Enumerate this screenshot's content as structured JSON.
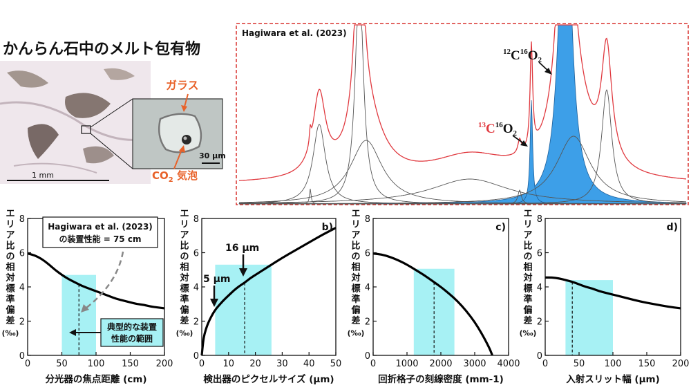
{
  "figure": {
    "title": "かんらん石中のメルト包有物",
    "scale_bar_main": "1 mm",
    "scale_bar_inset": "30 μm",
    "label_glass": "ガラス",
    "label_bubble_prefix": "CO",
    "label_bubble_sub": "2",
    "label_bubble_suffix": " 気泡"
  },
  "colors": {
    "accent_orange": "#e8622a",
    "red_curve": "#e0393f",
    "fill_blue": "#3d9fe8",
    "shade_cyan": "#a7f1f4",
    "border_red": "#d9322f"
  },
  "spectrum": {
    "title": "Hagiwara et al. (2023)",
    "label_12_mass1": "12",
    "label_12_elem1": "C",
    "label_12_mass2": "16",
    "label_12_elem2": "O",
    "label_12_sub": "2",
    "label_13_mass1": "13",
    "label_13_elem1": "C",
    "label_13_mass2": "16",
    "label_13_elem2": "O",
    "label_13_sub": "2"
  },
  "annotation": {
    "hagiwara_line1": "Hagiwara et al. (2023)",
    "hagiwara_line2": "の装置性能 = 75 cm",
    "typical_line1": "典型的な装置",
    "typical_line2": "性能の範囲",
    "pixel_5": "5 μm",
    "pixel_16": "16 μm"
  },
  "chart_data": [
    {
      "id": "a",
      "type": "line",
      "panel_label": "",
      "xlabel": "分光器の焦点距離 (cm)",
      "ylabel": "エリア比の相対標準偏差",
      "yunit": "(‰)",
      "xlim": [
        0,
        200
      ],
      "ylim": [
        0,
        8
      ],
      "xticks": [
        0,
        50,
        100,
        150,
        200
      ],
      "yticks": [
        0,
        2,
        4,
        6,
        8
      ],
      "x": [
        0,
        10,
        20,
        30,
        40,
        50,
        60,
        70,
        80,
        90,
        100,
        110,
        120,
        130,
        140,
        150,
        160,
        170,
        180,
        190,
        200
      ],
      "y": [
        5.95,
        5.85,
        5.65,
        5.35,
        5.0,
        4.7,
        4.45,
        4.25,
        4.05,
        3.9,
        3.75,
        3.6,
        3.45,
        3.3,
        3.2,
        3.1,
        3.0,
        2.95,
        2.85,
        2.8,
        2.75
      ],
      "shade": [
        50,
        100
      ],
      "marker": 75
    },
    {
      "id": "b",
      "type": "line",
      "panel_label": "b)",
      "xlabel": "検出器のピクセルサイズ (μm)",
      "ylabel": "エリア比の相対標準偏差",
      "yunit": "(‰)",
      "xlim": [
        0,
        50
      ],
      "ylim": [
        0,
        8
      ],
      "xticks": [
        0,
        10,
        20,
        30,
        40,
        50
      ],
      "yticks": [
        0,
        2,
        4,
        6,
        8
      ],
      "x": [
        0,
        0.5,
        1,
        2,
        3,
        4,
        5,
        6,
        8,
        10,
        12,
        14,
        16,
        18,
        20,
        22,
        25,
        30,
        35,
        40,
        45,
        50
      ],
      "y": [
        0,
        0.8,
        1.25,
        1.75,
        2.1,
        2.4,
        2.65,
        2.85,
        3.2,
        3.5,
        3.8,
        4.05,
        4.25,
        4.5,
        4.7,
        4.9,
        5.2,
        5.7,
        6.15,
        6.6,
        7.05,
        7.45
      ],
      "shade": [
        5,
        26
      ],
      "marker": 16
    },
    {
      "id": "c",
      "type": "line",
      "panel_label": "c)",
      "xlabel": "回折格子の刻線密度 (mm-1)",
      "ylabel": "エリア比の相対標準偏差",
      "yunit": "(‰)",
      "xlim": [
        0,
        4000
      ],
      "ylim": [
        0,
        8
      ],
      "xticks": [
        0,
        1000,
        2000,
        3000,
        4000
      ],
      "yticks": [
        0,
        2,
        4,
        6,
        8
      ],
      "x": [
        0,
        250,
        500,
        750,
        1000,
        1250,
        1500,
        1750,
        2000,
        2250,
        2500,
        2750,
        3000,
        3200,
        3350,
        3450,
        3500,
        3520
      ],
      "y": [
        5.95,
        5.9,
        5.75,
        5.55,
        5.3,
        5.0,
        4.7,
        4.35,
        4.0,
        3.6,
        3.15,
        2.6,
        1.95,
        1.3,
        0.75,
        0.35,
        0.1,
        0
      ],
      "shade": [
        1200,
        2400
      ],
      "marker": 1800
    },
    {
      "id": "d",
      "type": "line",
      "panel_label": "d)",
      "xlabel": "入射スリット幅 (μm)",
      "ylabel": "エリア比の相対標準偏差",
      "yunit": "(‰)",
      "xlim": [
        0,
        200
      ],
      "ylim": [
        0,
        8
      ],
      "xticks": [
        0,
        50,
        100,
        150,
        200
      ],
      "yticks": [
        0,
        2,
        4,
        6,
        8
      ],
      "x": [
        0,
        10,
        20,
        30,
        40,
        50,
        60,
        70,
        80,
        90,
        100,
        120,
        140,
        160,
        180,
        200
      ],
      "y": [
        4.55,
        4.55,
        4.5,
        4.4,
        4.3,
        4.15,
        4.0,
        3.9,
        3.75,
        3.65,
        3.55,
        3.35,
        3.15,
        3.0,
        2.85,
        2.75
      ],
      "shade": [
        30,
        100
      ],
      "marker": 40
    }
  ]
}
